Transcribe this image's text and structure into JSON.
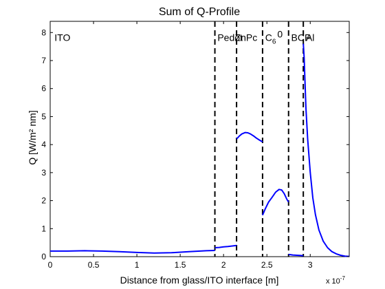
{
  "chart_data": {
    "type": "line",
    "title": "Sum of Q-Profile",
    "xlabel": "Distance from glass/ITO interface [m]",
    "ylabel": "Q  [W/m² nm]",
    "x_exponent_label": "x 10",
    "x_exponent_power": "-7",
    "xlim": [
      0,
      3.45
    ],
    "ylim": [
      0,
      8.4
    ],
    "x_ticks": [
      0,
      0.5,
      1,
      1.5,
      2,
      2.5,
      3
    ],
    "x_tick_labels": [
      "0",
      "0.5",
      "1",
      "1.5",
      "2",
      "2.5",
      "3"
    ],
    "y_ticks": [
      0,
      1,
      2,
      3,
      4,
      5,
      6,
      7,
      8
    ],
    "y_tick_labels": [
      "0",
      "1",
      "2",
      "3",
      "4",
      "5",
      "6",
      "7",
      "8"
    ],
    "grid": false,
    "line_color": "#0000ff",
    "boundaries": [
      1.9,
      2.15,
      2.45,
      2.75,
      2.92
    ],
    "layer_labels": [
      {
        "text": "ITO",
        "x": 0.05,
        "y": 7.7
      },
      {
        "text": "Pedot",
        "x": 1.93,
        "y": 7.7
      },
      {
        "text": "ZnPc",
        "x": 2.13,
        "y": 7.7
      },
      {
        "text": "C",
        "sub": "6",
        "sup": "0",
        "x": 2.48,
        "y": 7.7
      },
      {
        "text": "BCP",
        "x": 2.78,
        "y": 7.7
      },
      {
        "text": "Al",
        "x": 2.95,
        "y": 7.7
      }
    ],
    "segments": [
      {
        "name": "ITO",
        "x": [
          0,
          0.2,
          0.4,
          0.6,
          0.8,
          1.0,
          1.2,
          1.4,
          1.6,
          1.8,
          1.9
        ],
        "y": [
          0.2,
          0.2,
          0.21,
          0.2,
          0.18,
          0.15,
          0.13,
          0.14,
          0.18,
          0.21,
          0.22
        ]
      },
      {
        "name": "Pedot",
        "x": [
          1.9,
          1.95,
          2.0,
          2.05,
          2.1,
          2.15
        ],
        "y": [
          0.32,
          0.33,
          0.35,
          0.36,
          0.38,
          0.4
        ]
      },
      {
        "name": "ZnPc",
        "x": [
          2.15,
          2.18,
          2.21,
          2.25,
          2.28,
          2.31,
          2.35,
          2.38,
          2.42,
          2.45
        ],
        "y": [
          4.2,
          4.3,
          4.38,
          4.43,
          4.42,
          4.38,
          4.3,
          4.23,
          4.15,
          4.1
        ]
      },
      {
        "name": "C60",
        "x": [
          2.45,
          2.48,
          2.52,
          2.56,
          2.6,
          2.64,
          2.67,
          2.7,
          2.73,
          2.75
        ],
        "y": [
          1.48,
          1.7,
          1.95,
          2.12,
          2.3,
          2.4,
          2.38,
          2.25,
          2.05,
          1.95
        ]
      },
      {
        "name": "BCP",
        "x": [
          2.75,
          2.8,
          2.85,
          2.9,
          2.92
        ],
        "y": [
          0.08,
          0.06,
          0.05,
          0.04,
          0.03
        ]
      },
      {
        "name": "Al",
        "x": [
          2.92,
          2.93,
          2.94,
          2.95,
          2.97,
          3.0,
          3.03,
          3.06,
          3.1,
          3.15,
          3.2,
          3.25,
          3.3,
          3.35,
          3.4,
          3.45
        ],
        "y": [
          7.6,
          7.1,
          6.2,
          5.3,
          4.2,
          3.0,
          2.1,
          1.5,
          0.95,
          0.55,
          0.32,
          0.18,
          0.1,
          0.05,
          0.02,
          0.01
        ]
      }
    ]
  }
}
